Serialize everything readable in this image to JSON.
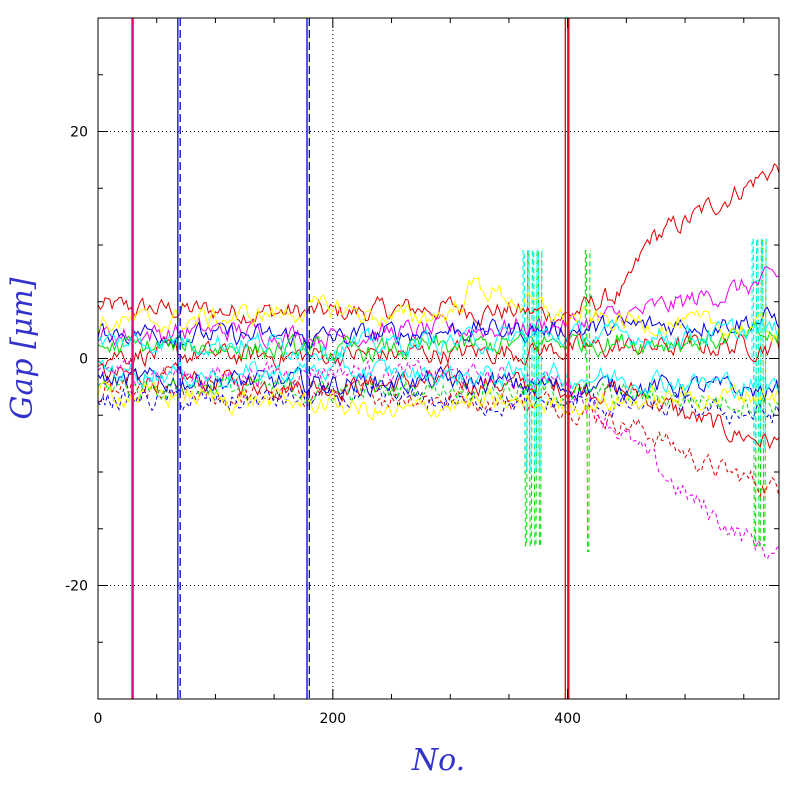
{
  "chart_data": {
    "type": "line",
    "title": "",
    "xlabel": "No.",
    "ylabel": "Gap [μm]",
    "xlim": [
      0,
      580
    ],
    "ylim": [
      -30,
      30
    ],
    "xticks": [
      0,
      200,
      400
    ],
    "yticks": [
      -20,
      0,
      20
    ],
    "xtick_labels": [
      "0",
      "200",
      "400"
    ],
    "ytick_labels": [
      "-20",
      "0",
      "20"
    ],
    "grid": "dotted at major ticks",
    "legend": "none",
    "label_color": "#3333cc",
    "palette": [
      "#dd0000",
      "#0000dd",
      "#00dd00",
      "#ee00ee",
      "#ffff00",
      "#00ffff"
    ],
    "vertical_spikes": [
      {
        "x": 29,
        "color": "#dd0000",
        "style": "solid"
      },
      {
        "x": 30,
        "color": "#ee00ee",
        "style": "solid"
      },
      {
        "x": 68,
        "color": "#0000dd",
        "style": "solid"
      },
      {
        "x": 70,
        "color": "#0000dd",
        "style": "dashed"
      },
      {
        "x": 178,
        "color": "#0000dd",
        "style": "solid"
      },
      {
        "x": 180,
        "color": "#0000dd",
        "style": "dashed"
      },
      {
        "x": 398,
        "color": "#dd0000",
        "style": "solid"
      },
      {
        "x": 400,
        "color": "#ee00ee",
        "style": "solid"
      },
      {
        "x": 401,
        "color": "#dd0000",
        "style": "solid"
      }
    ],
    "series": [
      {
        "color": "#dd0000",
        "style": "solid",
        "x": [
          0,
          100,
          200,
          300,
          400,
          450,
          470,
          500,
          540,
          580
        ],
        "y": [
          4.5,
          4.2,
          4.0,
          4.5,
          3.8,
          6.0,
          10.5,
          12.0,
          14.5,
          17.0
        ]
      },
      {
        "color": "#dd0000",
        "style": "solid",
        "x": [
          0,
          100,
          200,
          300,
          400,
          460,
          500,
          540,
          580
        ],
        "y": [
          -1.5,
          -2.0,
          -2.5,
          -2.0,
          -2.5,
          -3.0,
          -5.0,
          -6.5,
          -7.5
        ]
      },
      {
        "color": "#dd0000",
        "style": "dashed",
        "x": [
          0,
          100,
          200,
          300,
          400,
          470,
          520,
          580
        ],
        "y": [
          -3.0,
          -3.5,
          -3.0,
          -3.5,
          -4.0,
          -6.5,
          -9.5,
          -11.5
        ]
      },
      {
        "color": "#dd0000",
        "style": "solid",
        "x": [
          0,
          150,
          300,
          450,
          580
        ],
        "y": [
          0.5,
          0.2,
          0.5,
          1.0,
          1.2
        ]
      },
      {
        "color": "#ee00ee",
        "style": "solid",
        "x": [
          0,
          100,
          200,
          300,
          400,
          460,
          520,
          580
        ],
        "y": [
          2.0,
          2.5,
          2.0,
          2.5,
          3.0,
          4.0,
          5.5,
          7.0
        ]
      },
      {
        "color": "#ee00ee",
        "style": "dashed",
        "x": [
          0,
          100,
          200,
          300,
          400,
          460,
          500,
          540,
          580
        ],
        "y": [
          -1.0,
          -1.5,
          -1.0,
          -1.5,
          -2.0,
          -8.0,
          -12.0,
          -15.0,
          -17.5
        ]
      },
      {
        "color": "#0000dd",
        "style": "solid",
        "x": [
          0,
          100,
          200,
          300,
          400,
          500,
          580
        ],
        "y": [
          2.5,
          2.0,
          1.8,
          2.5,
          2.5,
          3.0,
          3.5
        ]
      },
      {
        "color": "#0000dd",
        "style": "solid",
        "x": [
          0,
          100,
          200,
          300,
          400,
          500,
          580
        ],
        "y": [
          -2.0,
          -2.0,
          -2.2,
          -2.0,
          -2.5,
          -2.5,
          -3.0
        ]
      },
      {
        "color": "#0000dd",
        "style": "dashed",
        "x": [
          0,
          100,
          200,
          300,
          400,
          500,
          580
        ],
        "y": [
          -3.5,
          -3.8,
          -3.5,
          -3.8,
          -4.0,
          -4.5,
          -5.0
        ]
      },
      {
        "color": "#00dd00",
        "style": "solid",
        "x": [
          0,
          100,
          200,
          300,
          400,
          500,
          580
        ],
        "y": [
          1.0,
          1.0,
          0.5,
          1.0,
          1.5,
          1.5,
          2.0
        ]
      },
      {
        "color": "#00dd00",
        "style": "dashed",
        "x": [
          0,
          100,
          200,
          300,
          400,
          500,
          580
        ],
        "y": [
          -2.5,
          -2.5,
          -3.0,
          -2.5,
          -3.0,
          -3.5,
          -4.0
        ]
      },
      {
        "color": "#ffff00",
        "style": "solid",
        "x": [
          0,
          100,
          200,
          250,
          300,
          320,
          400,
          500,
          580
        ],
        "y": [
          3.0,
          3.5,
          4.5,
          3.5,
          4.0,
          6.5,
          3.5,
          3.0,
          2.5
        ]
      },
      {
        "color": "#ffff00",
        "style": "solid",
        "x": [
          0,
          100,
          200,
          250,
          300,
          400,
          500,
          580
        ],
        "y": [
          -3.0,
          -3.5,
          -4.0,
          -5.0,
          -4.0,
          -4.0,
          -3.5,
          -3.0
        ]
      },
      {
        "color": "#00ffff",
        "style": "solid",
        "x": [
          0,
          100,
          200,
          300,
          400,
          500,
          580
        ],
        "y": [
          1.5,
          1.5,
          1.0,
          1.5,
          2.0,
          2.0,
          2.5
        ]
      },
      {
        "color": "#00ffff",
        "style": "solid",
        "x": [
          0,
          100,
          200,
          300,
          400,
          500,
          580
        ],
        "y": [
          -1.0,
          -1.5,
          -1.0,
          -1.5,
          -1.5,
          -2.0,
          -2.5
        ]
      }
    ],
    "burst_regions": [
      {
        "x_start": 362,
        "x_end": 378,
        "y_high": 9.5,
        "y_low": -16.5,
        "color": "#00dd00"
      },
      {
        "x_start": 362,
        "x_end": 378,
        "y_high": 9.5,
        "y_low": -10.0,
        "color": "#00ffff"
      },
      {
        "x_start": 415,
        "x_end": 420,
        "y_high": 9.5,
        "y_low": -17.0,
        "color": "#00dd00"
      },
      {
        "x_start": 557,
        "x_end": 570,
        "y_high": 10.5,
        "y_low": -16.5,
        "color": "#00dd00"
      },
      {
        "x_start": 557,
        "x_end": 570,
        "y_high": 10.5,
        "y_low": -8.0,
        "color": "#00ffff"
      }
    ]
  }
}
